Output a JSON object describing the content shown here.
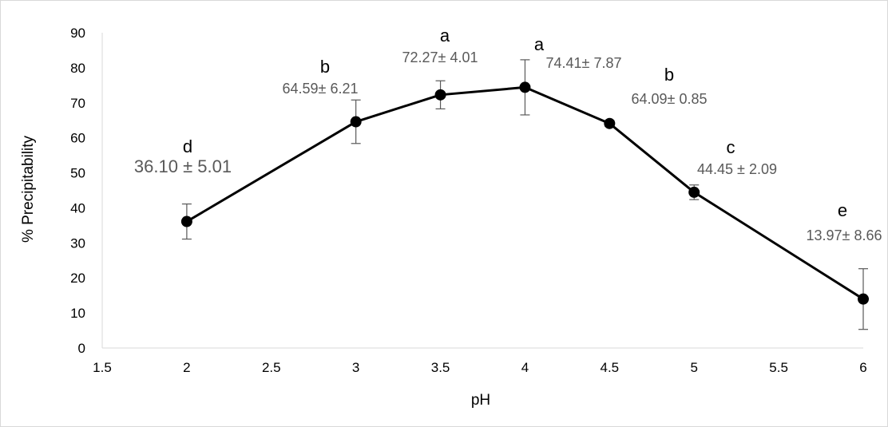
{
  "chart_data": {
    "type": "line",
    "xlabel": "pH",
    "ylabel": "% Precipitability",
    "xlim": [
      1.5,
      6
    ],
    "ylim": [
      0,
      90
    ],
    "xticks": [
      "1.5",
      "2",
      "2.5",
      "3",
      "3.5",
      "4",
      "4.5",
      "5",
      "5.5",
      "6"
    ],
    "yticks": [
      "0",
      "10",
      "20",
      "30",
      "40",
      "50",
      "60",
      "70",
      "80",
      "90"
    ],
    "grid": false,
    "series": [
      {
        "x": [
          2,
          3,
          3.5,
          4,
          4.5,
          5,
          6
        ],
        "y": [
          36.1,
          64.59,
          72.27,
          74.41,
          64.09,
          44.45,
          13.97
        ],
        "error": [
          5.01,
          6.21,
          4.01,
          7.87,
          0.85,
          2.09,
          8.66
        ],
        "color": "#000000",
        "error_color": "#595959"
      }
    ],
    "annotations": [
      {
        "letter": "d",
        "text": "36.10 ± 5.01"
      },
      {
        "letter": "b",
        "text": "64.59± 6.21"
      },
      {
        "letter": "a",
        "text": "72.27± 4.01"
      },
      {
        "letter": "a",
        "text": "74.41± 7.87"
      },
      {
        "letter": "b",
        "text": "64.09± 0.85"
      },
      {
        "letter": "c",
        "text": "44.45 ± 2.09"
      },
      {
        "letter": "e",
        "text": "13.97± 8.66"
      }
    ]
  }
}
